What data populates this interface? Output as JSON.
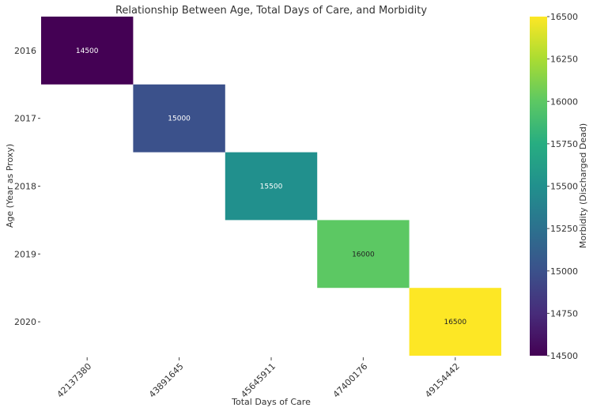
{
  "chart_data": {
    "type": "heatmap",
    "title": "Relationship Between Age, Total Days of Care, and Morbidity",
    "xlabel": "Total Days of Care",
    "ylabel": "Age (Year as Proxy)",
    "x_categories": [
      "42137380",
      "43891645",
      "45645911",
      "47400176",
      "49154442"
    ],
    "y_categories": [
      "2016",
      "2017",
      "2018",
      "2019",
      "2020"
    ],
    "cells": [
      {
        "x": "42137380",
        "y": "2016",
        "value": 14500,
        "label": "14500"
      },
      {
        "x": "43891645",
        "y": "2017",
        "value": 15000,
        "label": "15000"
      },
      {
        "x": "45645911",
        "y": "2018",
        "value": 15500,
        "label": "15500"
      },
      {
        "x": "47400176",
        "y": "2019",
        "value": 16000,
        "label": "16000"
      },
      {
        "x": "49154442",
        "y": "2020",
        "value": 16500,
        "label": "16500"
      }
    ],
    "colorbar": {
      "label": "Morbidity (Discharged Dead)",
      "range": [
        14500,
        16500
      ],
      "ticks": [
        "14500",
        "14750",
        "15000",
        "15250",
        "15500",
        "15750",
        "16000",
        "16250",
        "16500"
      ],
      "colormap": "viridis"
    },
    "grid": false
  }
}
